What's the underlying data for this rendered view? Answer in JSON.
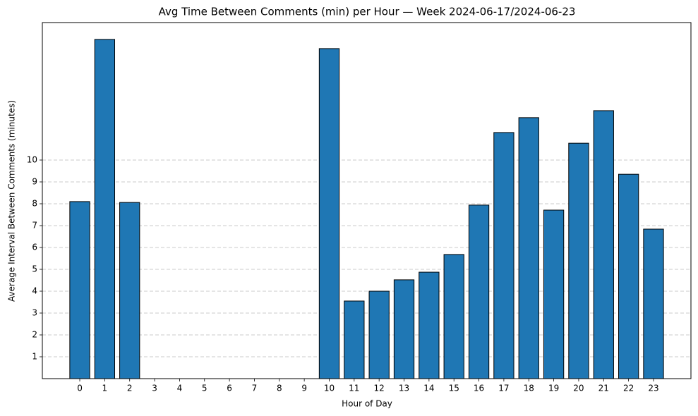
{
  "chart_data": {
    "type": "bar",
    "title": "Avg Time Between Comments (min) per Hour — Week 2024-06-17/2024-06-23",
    "x_label": "Hour of Day",
    "y_label": "Average Interval Between Comments (minutes)",
    "categories": [
      "0",
      "1",
      "2",
      "3",
      "4",
      "5",
      "6",
      "7",
      "8",
      "9",
      "10",
      "11",
      "12",
      "13",
      "14",
      "15",
      "16",
      "17",
      "18",
      "19",
      "20",
      "21",
      "22",
      "23"
    ],
    "values": [
      8.1,
      15.52,
      8.06,
      0,
      0,
      0,
      0,
      0,
      0,
      0,
      15.1,
      3.55,
      4.0,
      4.52,
      4.87,
      5.68,
      7.94,
      11.26,
      11.94,
      7.71,
      10.77,
      12.26,
      9.35,
      6.84
    ],
    "color": "#1f77b4",
    "ylim": [
      0,
      16.29
    ],
    "yticks": [
      1,
      2,
      3,
      4,
      5,
      6,
      7,
      8,
      9,
      10
    ],
    "grid": true
  }
}
